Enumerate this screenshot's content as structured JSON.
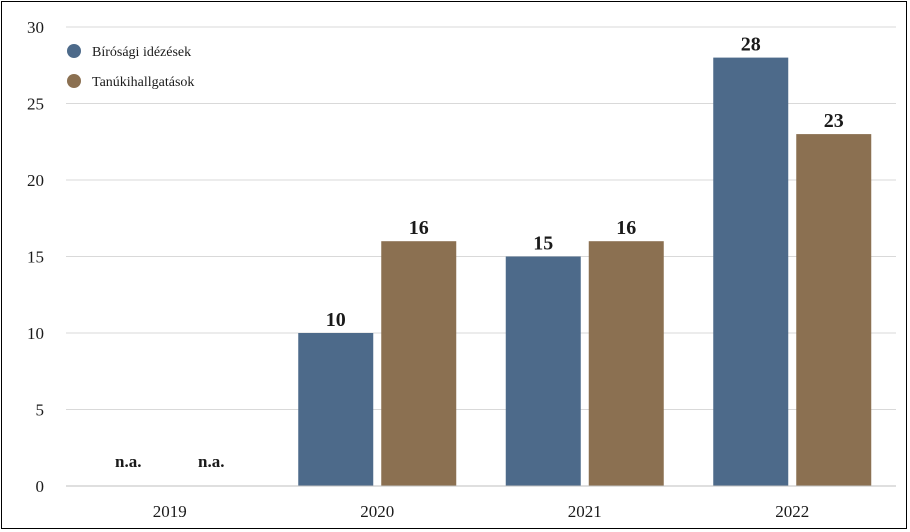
{
  "chart_data": {
    "type": "bar",
    "categories": [
      "2019",
      "2020",
      "2021",
      "2022"
    ],
    "series": [
      {
        "name": "Bírósági idézések",
        "color": "#4d6a8a",
        "values": [
          null,
          10,
          15,
          28
        ],
        "labels": [
          "n.a.",
          "10",
          "15",
          "28"
        ]
      },
      {
        "name": "Tanúkihallgatások",
        "color": "#8b7051",
        "values": [
          null,
          16,
          16,
          23
        ],
        "labels": [
          "n.a.",
          "16",
          "16",
          "23"
        ]
      }
    ],
    "ylim": [
      0,
      30
    ],
    "yticks": [
      "0",
      "5",
      "10",
      "15",
      "20",
      "25",
      "30"
    ],
    "grid": true,
    "legend": "top-left"
  }
}
